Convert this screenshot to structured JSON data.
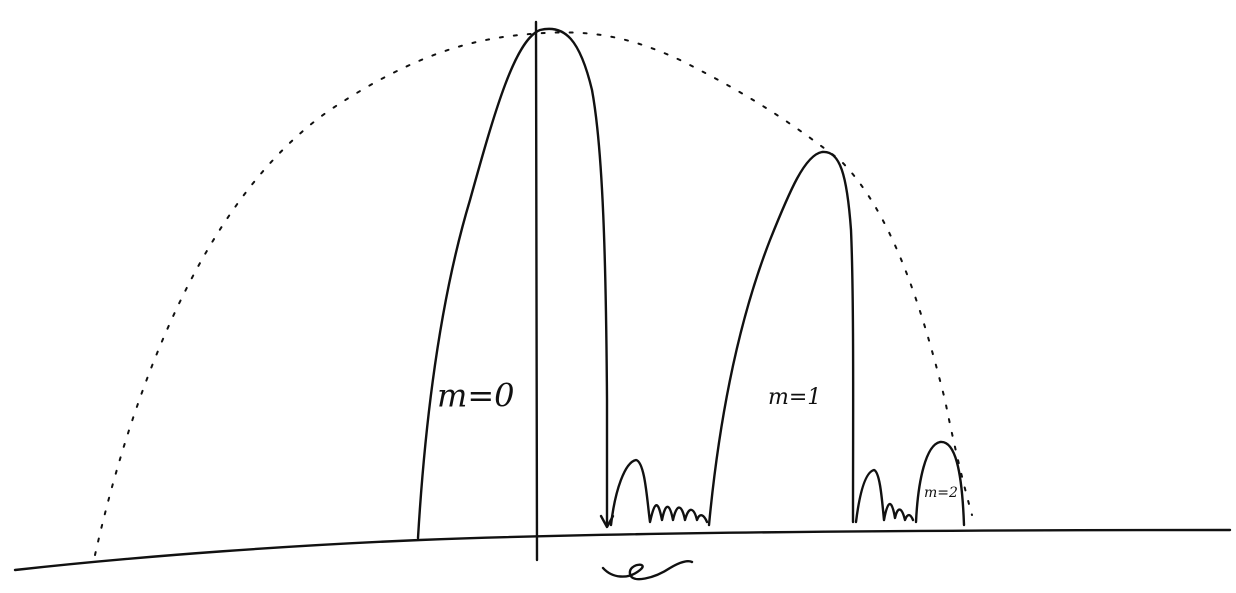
{
  "orders": [
    {
      "label": "m=0"
    },
    {
      "label": "m=1"
    },
    {
      "label": "m=2"
    }
  ]
}
